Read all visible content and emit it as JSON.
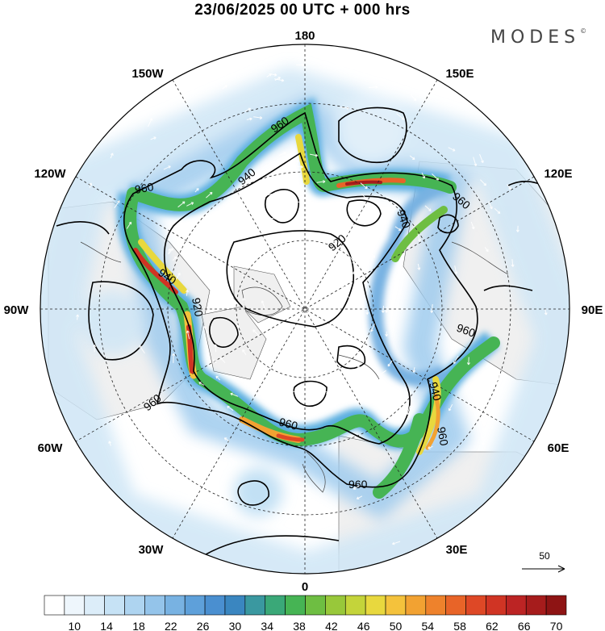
{
  "title": "23/06/2025  00 UTC  + 000 hrs",
  "logo": "MODES",
  "logo_mark": "©",
  "longitude_labels": {
    "lon_0": "0",
    "lon_30e": "30E",
    "lon_60e": "60E",
    "lon_90e": "90E",
    "lon_120e": "120E",
    "lon_150e": "150E",
    "lon_180": "180",
    "lon_150w": "150W",
    "lon_120w": "120W",
    "lon_90w": "90W",
    "lon_60w": "60W",
    "lon_30w": "30W"
  },
  "contour_labels": [
    "960",
    "940",
    "960",
    "940",
    "920",
    "960",
    "940",
    "920",
    "960",
    "940",
    "960",
    "960",
    "960",
    "960"
  ],
  "scale_vector": {
    "value": "50"
  },
  "colorbar": {
    "tick_labels": [
      "10",
      "14",
      "18",
      "22",
      "26",
      "30",
      "34",
      "38",
      "42",
      "46",
      "50",
      "54",
      "58",
      "62",
      "66",
      "70"
    ],
    "colors": [
      "#ffffff",
      "#eef6fc",
      "#dcedf9",
      "#c6e2f5",
      "#aed4f0",
      "#94c4ea",
      "#78b2e2",
      "#5ea0da",
      "#4a8fd0",
      "#3a86c0",
      "#3a98a0",
      "#3aa878",
      "#46b454",
      "#6ebe42",
      "#98c83a",
      "#c4d43a",
      "#e8d83e",
      "#f4c23c",
      "#f2a232",
      "#ee822c",
      "#e86428",
      "#de4826",
      "#d03424",
      "#bc2424",
      "#a61c1c",
      "#8e1414"
    ]
  }
}
